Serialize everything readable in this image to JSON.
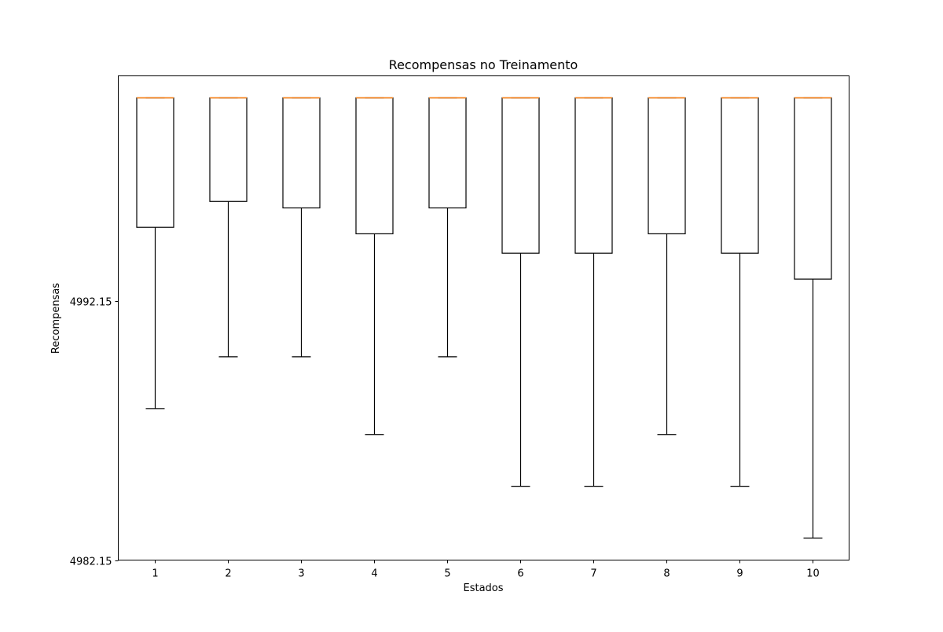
{
  "chart_data": {
    "type": "box",
    "title": "Recompensas no Treinamento",
    "xlabel": "Estados",
    "ylabel": "Recompensas",
    "categories": [
      "1",
      "2",
      "3",
      "4",
      "5",
      "6",
      "7",
      "8",
      "9",
      "10"
    ],
    "ylim": [
      4982.15,
      5000.85
    ],
    "yticks": [
      {
        "value": 4982.15,
        "label": "4982.15"
      },
      {
        "value": 4992.15,
        "label": "4992.15"
      }
    ],
    "boxes": [
      {
        "category": "1",
        "whisker_low": 4988.0,
        "q1": 4995.0,
        "median": 5000.0,
        "q3": 5000.0,
        "whisker_high": 5000.0
      },
      {
        "category": "2",
        "whisker_low": 4990.0,
        "q1": 4996.0,
        "median": 5000.0,
        "q3": 5000.0,
        "whisker_high": 5000.0
      },
      {
        "category": "3",
        "whisker_low": 4990.0,
        "q1": 4995.75,
        "median": 5000.0,
        "q3": 5000.0,
        "whisker_high": 5000.0
      },
      {
        "category": "4",
        "whisker_low": 4987.0,
        "q1": 4994.75,
        "median": 5000.0,
        "q3": 5000.0,
        "whisker_high": 5000.0
      },
      {
        "category": "5",
        "whisker_low": 4990.0,
        "q1": 4995.75,
        "median": 5000.0,
        "q3": 5000.0,
        "whisker_high": 5000.0
      },
      {
        "category": "6",
        "whisker_low": 4985.0,
        "q1": 4994.0,
        "median": 5000.0,
        "q3": 5000.0,
        "whisker_high": 5000.0
      },
      {
        "category": "7",
        "whisker_low": 4985.0,
        "q1": 4994.0,
        "median": 5000.0,
        "q3": 5000.0,
        "whisker_high": 5000.0
      },
      {
        "category": "8",
        "whisker_low": 4987.0,
        "q1": 4994.75,
        "median": 5000.0,
        "q3": 5000.0,
        "whisker_high": 5000.0
      },
      {
        "category": "9",
        "whisker_low": 4985.0,
        "q1": 4994.0,
        "median": 5000.0,
        "q3": 5000.0,
        "whisker_high": 5000.0
      },
      {
        "category": "10",
        "whisker_low": 4983.0,
        "q1": 4993.0,
        "median": 5000.0,
        "q3": 5000.0,
        "whisker_high": 5000.0
      }
    ],
    "grid": false,
    "colors": {
      "box": "#000000",
      "median": "#ff7f0e",
      "axes": "#000000"
    }
  }
}
